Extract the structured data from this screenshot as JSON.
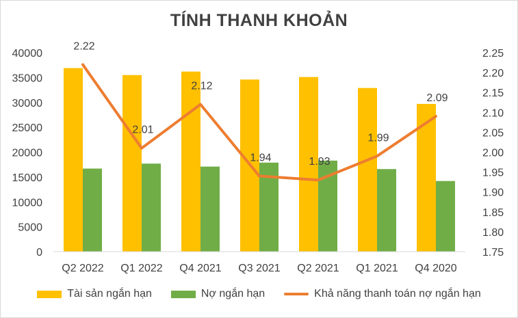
{
  "chart_data": {
    "type": "bar+line",
    "title": "TÍNH THANH KHOẢN",
    "categories": [
      "Q2 2022",
      "Q1 2022",
      "Q4 2021",
      "Q3 2021",
      "Q2 2021",
      "Q1 2021",
      "Q4 2020"
    ],
    "series": [
      {
        "name": "Tài sản ngắn hạn",
        "type": "bar",
        "axis": "left",
        "color": "#FFC000",
        "values": [
          36900,
          35500,
          36200,
          34600,
          35100,
          32900,
          29700
        ]
      },
      {
        "name": "Nợ ngắn hạn",
        "type": "bar",
        "axis": "left",
        "color": "#70AD47",
        "values": [
          16700,
          17700,
          17100,
          17900,
          18300,
          16600,
          14200
        ]
      },
      {
        "name": "Khả năng thanh toán nợ ngắn hạn",
        "type": "line",
        "axis": "right",
        "color": "#ED7D31",
        "values": [
          2.22,
          2.01,
          2.12,
          1.94,
          1.93,
          1.99,
          2.09
        ],
        "labels": [
          "2.22",
          "2.01",
          "2.12",
          "1.94",
          "1.93",
          "1.99",
          "2.09"
        ]
      }
    ],
    "y_left": {
      "ylim": [
        0,
        40000
      ],
      "ticks": [
        "0",
        "5000",
        "10000",
        "15000",
        "20000",
        "25000",
        "30000",
        "35000",
        "40000"
      ]
    },
    "y_right": {
      "ylim": [
        1.75,
        2.25
      ],
      "ticks": [
        "1.75",
        "1.80",
        "1.85",
        "1.90",
        "1.95",
        "2.00",
        "2.05",
        "2.10",
        "2.15",
        "2.20",
        "2.25"
      ]
    },
    "grid": false,
    "legend_position": "bottom"
  }
}
